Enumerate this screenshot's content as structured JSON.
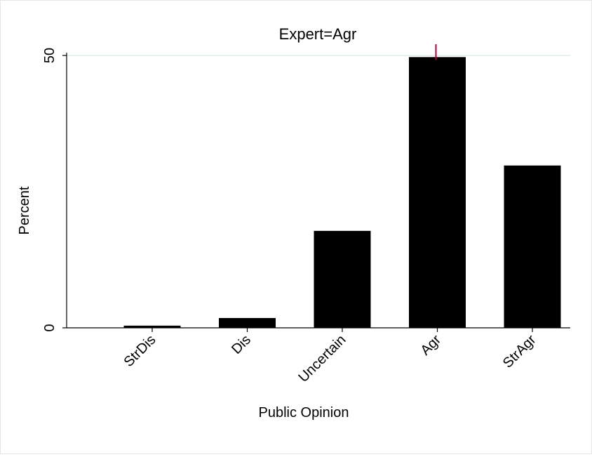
{
  "chart_data": {
    "type": "bar",
    "title": "Expert=Agr",
    "xlabel": "Public Opinion",
    "ylabel": "Percent",
    "categories": [
      "StrDis",
      "Dis",
      "Uncertain",
      "Agr",
      "StrAgr"
    ],
    "values": [
      0.4,
      1.8,
      17.8,
      49.7,
      29.8
    ],
    "ylim": [
      0,
      50
    ],
    "yticks": [
      0,
      50
    ],
    "grid": true,
    "colors": {
      "bar": "#000000",
      "grid": "#eaf0f2",
      "marker": "#b5003a"
    },
    "reference_marker": {
      "category": "Agr"
    }
  }
}
